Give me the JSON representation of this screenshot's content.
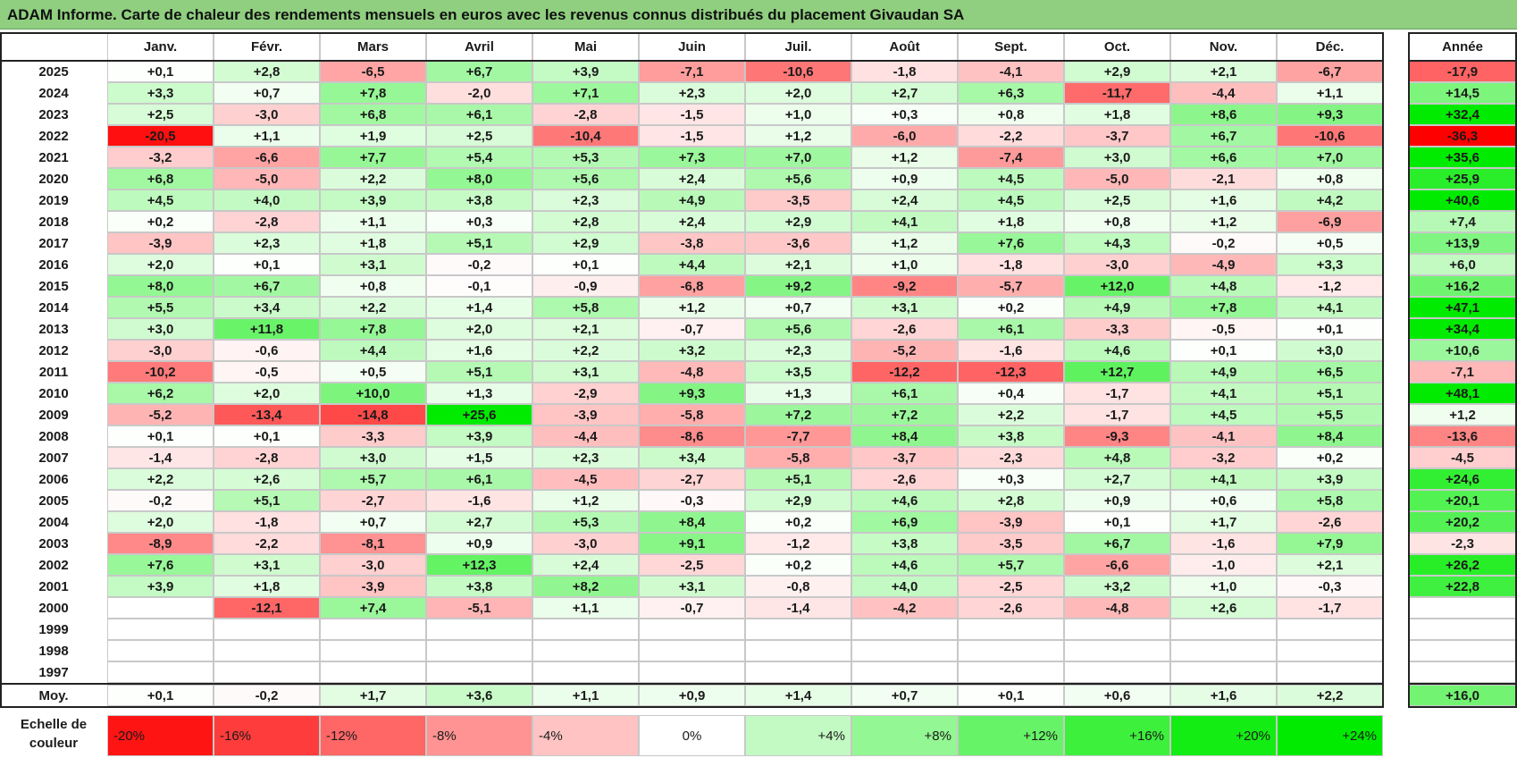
{
  "title": "ADAM Informe. Carte de chaleur des rendements mensuels en euros avec les revenus connus distribués du placement Givaudan SA",
  "chart_data": {
    "type": "heatmap",
    "title": "ADAM Informe. Carte de chaleur des rendements mensuels en euros avec les revenus connus distribués du placement Givaudan SA",
    "months": [
      "Janv.",
      "Févr.",
      "Mars",
      "Avril",
      "Mai",
      "Juin",
      "Juil.",
      "Août",
      "Sept.",
      "Oct.",
      "Nov.",
      "Déc."
    ],
    "year_header": "Année",
    "rows": [
      {
        "year": "2025",
        "values": [
          "+0,1",
          "+2,8",
          "-6,5",
          "+6,7",
          "+3,9",
          "-7,1",
          "-10,6",
          "-1,8",
          "-4,1",
          "+2,9",
          "+2,1",
          "-6,7"
        ],
        "annual": "-17,9"
      },
      {
        "year": "2024",
        "values": [
          "+3,3",
          "+0,7",
          "+7,8",
          "-2,0",
          "+7,1",
          "+2,3",
          "+2,0",
          "+2,7",
          "+6,3",
          "-11,7",
          "-4,4",
          "+1,1"
        ],
        "annual": "+14,5"
      },
      {
        "year": "2023",
        "values": [
          "+2,5",
          "-3,0",
          "+6,8",
          "+6,1",
          "-2,8",
          "-1,5",
          "+1,0",
          "+0,3",
          "+0,8",
          "+1,8",
          "+8,6",
          "+9,3"
        ],
        "annual": "+32,4"
      },
      {
        "year": "2022",
        "values": [
          "-20,5",
          "+1,1",
          "+1,9",
          "+2,5",
          "-10,4",
          "-1,5",
          "+1,2",
          "-6,0",
          "-2,2",
          "-3,7",
          "+6,7",
          "-10,6"
        ],
        "annual": "-36,3"
      },
      {
        "year": "2021",
        "values": [
          "-3,2",
          "-6,6",
          "+7,7",
          "+5,4",
          "+5,3",
          "+7,3",
          "+7,0",
          "+1,2",
          "-7,4",
          "+3,0",
          "+6,6",
          "+7,0"
        ],
        "annual": "+35,6"
      },
      {
        "year": "2020",
        "values": [
          "+6,8",
          "-5,0",
          "+2,2",
          "+8,0",
          "+5,6",
          "+2,4",
          "+5,6",
          "+0,9",
          "+4,5",
          "-5,0",
          "-2,1",
          "+0,8"
        ],
        "annual": "+25,9"
      },
      {
        "year": "2019",
        "values": [
          "+4,5",
          "+4,0",
          "+3,9",
          "+3,8",
          "+2,3",
          "+4,9",
          "-3,5",
          "+2,4",
          "+4,5",
          "+2,5",
          "+1,6",
          "+4,2"
        ],
        "annual": "+40,6"
      },
      {
        "year": "2018",
        "values": [
          "+0,2",
          "-2,8",
          "+1,1",
          "+0,3",
          "+2,8",
          "+2,4",
          "+2,9",
          "+4,1",
          "+1,8",
          "+0,8",
          "+1,2",
          "-6,9"
        ],
        "annual": "+7,4"
      },
      {
        "year": "2017",
        "values": [
          "-3,9",
          "+2,3",
          "+1,8",
          "+5,1",
          "+2,9",
          "-3,8",
          "-3,6",
          "+1,2",
          "+7,6",
          "+4,3",
          "-0,2",
          "+0,5"
        ],
        "annual": "+13,9"
      },
      {
        "year": "2016",
        "values": [
          "+2,0",
          "+0,1",
          "+3,1",
          "-0,2",
          "+0,1",
          "+4,4",
          "+2,1",
          "+1,0",
          "-1,8",
          "-3,0",
          "-4,9",
          "+3,3"
        ],
        "annual": "+6,0"
      },
      {
        "year": "2015",
        "values": [
          "+8,0",
          "+6,7",
          "+0,8",
          "-0,1",
          "-0,9",
          "-6,8",
          "+9,2",
          "-9,2",
          "-5,7",
          "+12,0",
          "+4,8",
          "-1,2"
        ],
        "annual": "+16,2"
      },
      {
        "year": "2014",
        "values": [
          "+5,5",
          "+3,4",
          "+2,2",
          "+1,4",
          "+5,8",
          "+1,2",
          "+0,7",
          "+3,1",
          "+0,2",
          "+4,9",
          "+7,8",
          "+4,1"
        ],
        "annual": "+47,1"
      },
      {
        "year": "2013",
        "values": [
          "+3,0",
          "+11,8",
          "+7,8",
          "+2,0",
          "+2,1",
          "-0,7",
          "+5,6",
          "-2,6",
          "+6,1",
          "-3,3",
          "-0,5",
          "+0,1"
        ],
        "annual": "+34,4"
      },
      {
        "year": "2012",
        "values": [
          "-3,0",
          "-0,6",
          "+4,4",
          "+1,6",
          "+2,2",
          "+3,2",
          "+2,3",
          "-5,2",
          "-1,6",
          "+4,6",
          "+0,1",
          "+3,0"
        ],
        "annual": "+10,6"
      },
      {
        "year": "2011",
        "values": [
          "-10,2",
          "-0,5",
          "+0,5",
          "+5,1",
          "+3,1",
          "-4,8",
          "+3,5",
          "-12,2",
          "-12,3",
          "+12,7",
          "+4,9",
          "+6,5"
        ],
        "annual": "-7,1"
      },
      {
        "year": "2010",
        "values": [
          "+6,2",
          "+2,0",
          "+10,0",
          "+1,3",
          "-2,9",
          "+9,3",
          "+1,3",
          "+6,1",
          "+0,4",
          "-1,7",
          "+4,1",
          "+5,1"
        ],
        "annual": "+48,1"
      },
      {
        "year": "2009",
        "values": [
          "-5,2",
          "-13,4",
          "-14,8",
          "+25,6",
          "-3,9",
          "-5,8",
          "+7,2",
          "+7,2",
          "+2,2",
          "-1,7",
          "+4,5",
          "+5,5"
        ],
        "annual": "+1,2"
      },
      {
        "year": "2008",
        "values": [
          "+0,1",
          "+0,1",
          "-3,3",
          "+3,9",
          "-4,4",
          "-8,6",
          "-7,7",
          "+8,4",
          "+3,8",
          "-9,3",
          "-4,1",
          "+8,4"
        ],
        "annual": "-13,6"
      },
      {
        "year": "2007",
        "values": [
          "-1,4",
          "-2,8",
          "+3,0",
          "+1,5",
          "+2,3",
          "+3,4",
          "-5,8",
          "-3,7",
          "-2,3",
          "+4,8",
          "-3,2",
          "+0,2"
        ],
        "annual": "-4,5"
      },
      {
        "year": "2006",
        "values": [
          "+2,2",
          "+2,6",
          "+5,7",
          "+6,1",
          "-4,5",
          "-2,7",
          "+5,1",
          "-2,6",
          "+0,3",
          "+2,7",
          "+4,1",
          "+3,9"
        ],
        "annual": "+24,6"
      },
      {
        "year": "2005",
        "values": [
          "-0,2",
          "+5,1",
          "-2,7",
          "-1,6",
          "+1,2",
          "-0,3",
          "+2,9",
          "+4,6",
          "+2,8",
          "+0,9",
          "+0,6",
          "+5,8"
        ],
        "annual": "+20,1"
      },
      {
        "year": "2004",
        "values": [
          "+2,0",
          "-1,8",
          "+0,7",
          "+2,7",
          "+5,3",
          "+8,4",
          "+0,2",
          "+6,9",
          "-3,9",
          "+0,1",
          "+1,7",
          "-2,6"
        ],
        "annual": "+20,2"
      },
      {
        "year": "2003",
        "values": [
          "-8,9",
          "-2,2",
          "-8,1",
          "+0,9",
          "-3,0",
          "+9,1",
          "-1,2",
          "+3,8",
          "-3,5",
          "+6,7",
          "-1,6",
          "+7,9"
        ],
        "annual": "-2,3"
      },
      {
        "year": "2002",
        "values": [
          "+7,6",
          "+3,1",
          "-3,0",
          "+12,3",
          "+2,4",
          "-2,5",
          "+0,2",
          "+4,6",
          "+5,7",
          "-6,6",
          "-1,0",
          "+2,1"
        ],
        "annual": "+26,2"
      },
      {
        "year": "2001",
        "values": [
          "+3,9",
          "+1,8",
          "-3,9",
          "+3,8",
          "+8,2",
          "+3,1",
          "-0,8",
          "+4,0",
          "-2,5",
          "+3,2",
          "+1,0",
          "-0,3"
        ],
        "annual": "+22,8"
      },
      {
        "year": "2000",
        "values": [
          "",
          "-12,1",
          "+7,4",
          "-5,1",
          "+1,1",
          "-0,7",
          "-1,4",
          "-4,2",
          "-2,6",
          "-4,8",
          "+2,6",
          "-1,7"
        ],
        "annual": ""
      },
      {
        "year": "1999",
        "values": [
          "",
          "",
          "",
          "",
          "",
          "",
          "",
          "",
          "",
          "",
          "",
          ""
        ],
        "annual": ""
      },
      {
        "year": "1998",
        "values": [
          "",
          "",
          "",
          "",
          "",
          "",
          "",
          "",
          "",
          "",
          "",
          ""
        ],
        "annual": ""
      },
      {
        "year": "1997",
        "values": [
          "",
          "",
          "",
          "",
          "",
          "",
          "",
          "",
          "",
          "",
          "",
          ""
        ],
        "annual": ""
      }
    ],
    "average": {
      "label": "Moy.",
      "values": [
        "+0,1",
        "-0,2",
        "+1,7",
        "+3,6",
        "+1,1",
        "+0,9",
        "+1,4",
        "+0,7",
        "+0,1",
        "+0,6",
        "+1,6",
        "+2,2"
      ],
      "annual": "+16,0"
    },
    "scale": {
      "label_line1": "Echelle de",
      "label_line2": "couleur",
      "steps": [
        "-20%",
        "-16%",
        "-12%",
        "-8%",
        "-4%",
        "0%",
        "+4%",
        "+8%",
        "+12%",
        "+16%",
        "+20%",
        "+24%"
      ],
      "step_values": [
        -20,
        -16,
        -12,
        -8,
        -4,
        0,
        4,
        8,
        12,
        16,
        20,
        24
      ]
    },
    "colors": {
      "negative": "#ff0000",
      "positive": "#00ff00",
      "neutral": "#ffffff"
    }
  }
}
